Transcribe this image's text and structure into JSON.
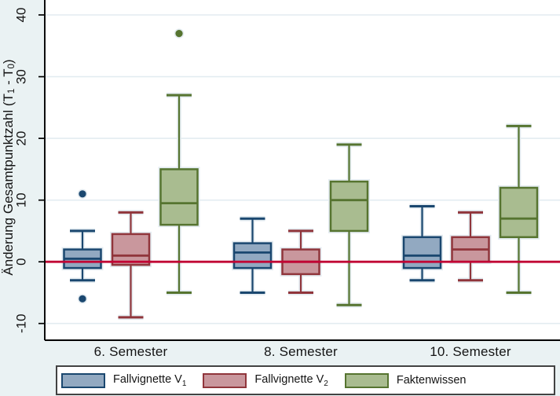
{
  "figure": {
    "background": "#eaf2f3",
    "plot_background": "#ffffff",
    "grid_color": "#e3ecf1",
    "halo_color": "#e3ebf0",
    "axis_color": "#000000",
    "text_color": "#141414",
    "legend_border": "#424242"
  },
  "chart_data": {
    "type": "boxplot",
    "ylabel_text": "Änderung Gesamtpunktzahl (T1 - T0)",
    "ylabel_segments": [
      {
        "t": "Änderung Gesamtpunktzahl (T"
      },
      {
        "t": "1",
        "sub": true
      },
      {
        "t": " - T"
      },
      {
        "t": "0",
        "sub": true
      },
      {
        "t": ")"
      }
    ],
    "yticks": [
      40,
      30,
      20,
      10,
      0,
      -10
    ],
    "ylim": [
      -12.7,
      42.4
    ],
    "grid": true,
    "legend_position": "bottom",
    "reference_line": {
      "value": 0,
      "color": "#c10534"
    },
    "categories": [
      "6. Semester",
      "8. Semester",
      "10. Semester"
    ],
    "series": [
      {
        "name": "Fallvignette V1",
        "name_segments": [
          {
            "t": "Fallvignette V"
          },
          {
            "t": "1",
            "sub": true
          }
        ],
        "fill": "#92a9c1",
        "border": "#1a476f",
        "boxes": [
          {
            "whisker_low": -3,
            "q1": -1,
            "median": 0.5,
            "q3": 2,
            "whisker_high": 5,
            "outliers": [
              11,
              -6
            ]
          },
          {
            "whisker_low": -5,
            "q1": -1,
            "median": 1.5,
            "q3": 3,
            "whisker_high": 7,
            "outliers": []
          },
          {
            "whisker_low": -3,
            "q1": -1,
            "median": 1,
            "q3": 4,
            "whisker_high": 9,
            "outliers": []
          }
        ]
      },
      {
        "name": "Fallvignette V2",
        "name_segments": [
          {
            "t": "Fallvignette V"
          },
          {
            "t": "2",
            "sub": true
          }
        ],
        "fill": "#c9979d",
        "border": "#90353b",
        "boxes": [
          {
            "whisker_low": -9,
            "q1": -0.5,
            "median": 1,
            "q3": 4.5,
            "whisker_high": 8,
            "outliers": []
          },
          {
            "whisker_low": -5,
            "q1": -2,
            "median": 0,
            "q3": 2,
            "whisker_high": 5,
            "outliers": []
          },
          {
            "whisker_low": -3,
            "q1": 0,
            "median": 2,
            "q3": 4,
            "whisker_high": 8,
            "outliers": []
          }
        ]
      },
      {
        "name": "Faktenwissen",
        "name_segments": [
          {
            "t": "Faktenwissen"
          }
        ],
        "fill": "#a9bc90",
        "border": "#567430",
        "boxes": [
          {
            "whisker_low": -5,
            "q1": 6,
            "median": 9.5,
            "q3": 15,
            "whisker_high": 27,
            "outliers": [
              37
            ]
          },
          {
            "whisker_low": -7,
            "q1": 5,
            "median": 10,
            "q3": 13,
            "whisker_high": 19,
            "outliers": []
          },
          {
            "whisker_low": -5,
            "q1": 4,
            "median": 7,
            "q3": 12,
            "whisker_high": 22,
            "outliers": []
          }
        ]
      }
    ]
  }
}
